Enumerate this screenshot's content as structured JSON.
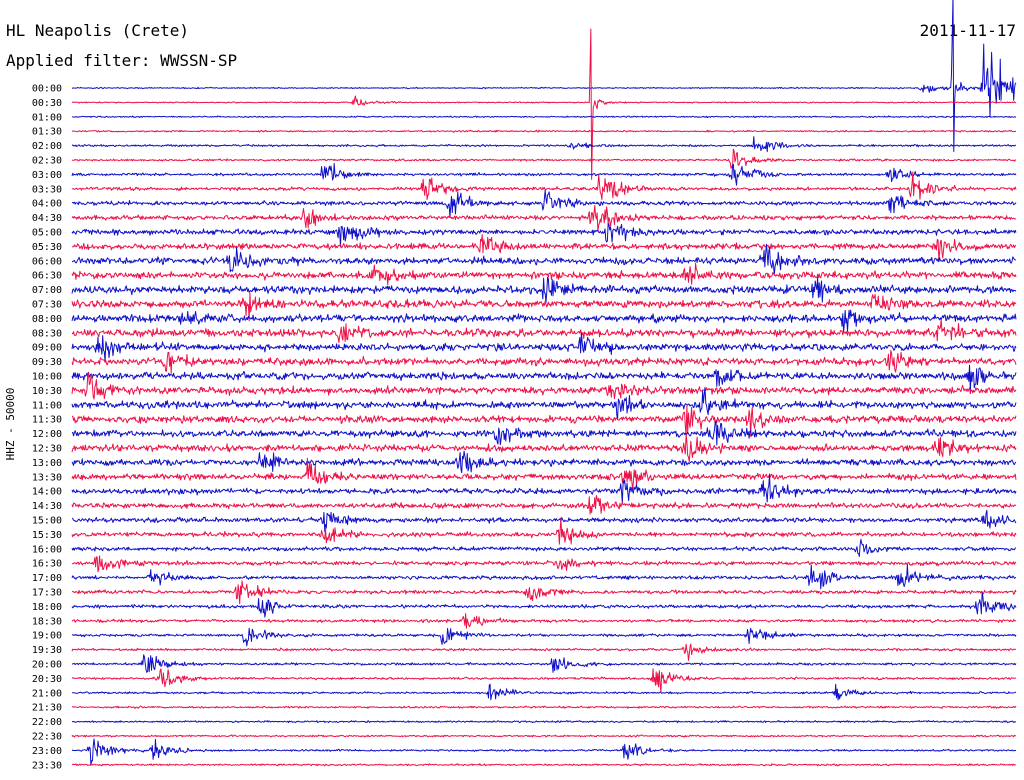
{
  "station": "HL Neapolis (Crete)",
  "date": "2011-11-17",
  "filter_text": "Applied filter: WWSSN-SP",
  "ylabel": "HHZ - 50000",
  "colors": {
    "odd_trace": "#1010c8",
    "even_trace": "#ee1148",
    "text": "#000000",
    "background": "#ffffff"
  },
  "chart_data": {
    "type": "line",
    "subtype": "helicorder",
    "title": "HL Neapolis (Crete)",
    "subtitle": "Applied filter: WWSSN-SP",
    "date": "2011-11-17",
    "ylabel": "HHZ - 50000",
    "xlabel": "",
    "grid": false,
    "legend": "none",
    "minutes_per_row": 30,
    "row_labels": [
      "00:00",
      "00:30",
      "01:00",
      "01:30",
      "02:00",
      "02:30",
      "03:00",
      "03:30",
      "04:00",
      "04:30",
      "05:00",
      "05:30",
      "06:00",
      "06:30",
      "07:00",
      "07:30",
      "08:00",
      "08:30",
      "09:00",
      "09:30",
      "10:00",
      "10:30",
      "11:00",
      "11:30",
      "12:00",
      "12:30",
      "13:00",
      "13:30",
      "14:00",
      "14:30",
      "15:00",
      "15:30",
      "16:00",
      "16:30",
      "17:00",
      "17:30",
      "18:00",
      "18:30",
      "19:00",
      "19:30",
      "20:00",
      "20:30",
      "21:00",
      "21:30",
      "22:00",
      "22:30",
      "23:00",
      "23:30"
    ],
    "row_colors": [
      "blue",
      "red"
    ],
    "noise_level": [
      0.6,
      0.6,
      0.7,
      0.8,
      1.0,
      1.0,
      1.3,
      1.6,
      2.0,
      2.2,
      2.6,
      3.0,
      3.4,
      3.6,
      3.8,
      3.8,
      3.8,
      3.8,
      3.6,
      3.6,
      3.6,
      3.6,
      3.6,
      3.6,
      3.4,
      3.4,
      3.2,
      3.0,
      2.8,
      2.6,
      2.4,
      2.2,
      2.0,
      2.0,
      1.8,
      1.8,
      1.6,
      1.4,
      1.3,
      1.2,
      1.2,
      1.1,
      1.0,
      1.0,
      0.9,
      0.9,
      0.9,
      0.9
    ],
    "events": [
      {
        "row": 0,
        "minute": 28.0,
        "amplitude": 95,
        "kind": "spike"
      },
      {
        "row": 0,
        "minute": 29.0,
        "amplitude": 40,
        "kind": "burst"
      },
      {
        "row": 1,
        "minute": 16.5,
        "amplitude": 90,
        "kind": "spike"
      },
      {
        "row": 0,
        "minute": 27.0,
        "amplitude": 5,
        "kind": "burst"
      },
      {
        "row": 1,
        "minute": 9.0,
        "amplitude": 4,
        "kind": "burst"
      },
      {
        "row": 4,
        "minute": 15.8,
        "amplitude": 5,
        "kind": "burst"
      },
      {
        "row": 4,
        "minute": 21.7,
        "amplitude": 9,
        "kind": "burst"
      },
      {
        "row": 5,
        "minute": 21.0,
        "amplitude": 9,
        "kind": "burst"
      },
      {
        "row": 6,
        "minute": 21.0,
        "amplitude": 12,
        "kind": "burst"
      },
      {
        "row": 6,
        "minute": 8.0,
        "amplitude": 10,
        "kind": "burst"
      },
      {
        "row": 6,
        "minute": 26.0,
        "amplitude": 7,
        "kind": "burst"
      },
      {
        "row": 7,
        "minute": 11.2,
        "amplitude": 14,
        "kind": "burst"
      },
      {
        "row": 7,
        "minute": 16.8,
        "amplitude": 14,
        "kind": "burst"
      },
      {
        "row": 7,
        "minute": 26.7,
        "amplitude": 12,
        "kind": "burst"
      },
      {
        "row": 8,
        "minute": 12.0,
        "amplitude": 12,
        "kind": "burst"
      },
      {
        "row": 8,
        "minute": 15.0,
        "amplitude": 13,
        "kind": "burst"
      },
      {
        "row": 8,
        "minute": 26.0,
        "amplitude": 10,
        "kind": "burst"
      },
      {
        "row": 9,
        "minute": 7.4,
        "amplitude": 10,
        "kind": "burst"
      },
      {
        "row": 9,
        "minute": 16.5,
        "amplitude": 14,
        "kind": "burst"
      },
      {
        "row": 10,
        "minute": 8.5,
        "amplitude": 13,
        "kind": "burst"
      },
      {
        "row": 10,
        "minute": 17.0,
        "amplitude": 12,
        "kind": "burst"
      },
      {
        "row": 11,
        "minute": 13.0,
        "amplitude": 12,
        "kind": "burst"
      },
      {
        "row": 11,
        "minute": 27.5,
        "amplitude": 12,
        "kind": "burst"
      },
      {
        "row": 12,
        "minute": 5.0,
        "amplitude": 12,
        "kind": "burst"
      },
      {
        "row": 12,
        "minute": 22.0,
        "amplitude": 14,
        "kind": "burst"
      },
      {
        "row": 13,
        "minute": 9.5,
        "amplitude": 13,
        "kind": "burst"
      },
      {
        "row": 13,
        "minute": 19.5,
        "amplitude": 13,
        "kind": "burst"
      },
      {
        "row": 14,
        "minute": 15.0,
        "amplitude": 12,
        "kind": "burst"
      },
      {
        "row": 14,
        "minute": 23.5,
        "amplitude": 12,
        "kind": "burst"
      },
      {
        "row": 15,
        "minute": 5.5,
        "amplitude": 12,
        "kind": "burst"
      },
      {
        "row": 15,
        "minute": 25.5,
        "amplitude": 13,
        "kind": "burst"
      },
      {
        "row": 16,
        "minute": 3.5,
        "amplitude": 12,
        "kind": "burst"
      },
      {
        "row": 16,
        "minute": 24.5,
        "amplitude": 12,
        "kind": "burst"
      },
      {
        "row": 17,
        "minute": 8.5,
        "amplitude": 13,
        "kind": "burst"
      },
      {
        "row": 17,
        "minute": 27.5,
        "amplitude": 13,
        "kind": "burst"
      },
      {
        "row": 18,
        "minute": 0.8,
        "amplitude": 14,
        "kind": "burst"
      },
      {
        "row": 18,
        "minute": 16.2,
        "amplitude": 13,
        "kind": "burst"
      },
      {
        "row": 19,
        "minute": 3.0,
        "amplitude": 12,
        "kind": "burst"
      },
      {
        "row": 19,
        "minute": 26.0,
        "amplitude": 12,
        "kind": "burst"
      },
      {
        "row": 20,
        "minute": 20.5,
        "amplitude": 10,
        "kind": "burst"
      },
      {
        "row": 20,
        "minute": 28.5,
        "amplitude": 12,
        "kind": "burst"
      },
      {
        "row": 21,
        "minute": 0.5,
        "amplitude": 12,
        "kind": "burst"
      },
      {
        "row": 21,
        "minute": 17.0,
        "amplitude": 12,
        "kind": "burst"
      },
      {
        "row": 22,
        "minute": 17.3,
        "amplitude": 14,
        "kind": "burst"
      },
      {
        "row": 22,
        "minute": 20.0,
        "amplitude": 12,
        "kind": "burst"
      },
      {
        "row": 23,
        "minute": 19.5,
        "amplitude": 13,
        "kind": "burst"
      },
      {
        "row": 23,
        "minute": 21.5,
        "amplitude": 12,
        "kind": "burst"
      },
      {
        "row": 24,
        "minute": 13.5,
        "amplitude": 13,
        "kind": "burst"
      },
      {
        "row": 24,
        "minute": 20.3,
        "amplitude": 14,
        "kind": "burst"
      },
      {
        "row": 25,
        "minute": 19.5,
        "amplitude": 14,
        "kind": "burst"
      },
      {
        "row": 25,
        "minute": 27.5,
        "amplitude": 12,
        "kind": "burst"
      },
      {
        "row": 26,
        "minute": 6.0,
        "amplitude": 12,
        "kind": "burst"
      },
      {
        "row": 26,
        "minute": 12.3,
        "amplitude": 12,
        "kind": "burst"
      },
      {
        "row": 27,
        "minute": 7.5,
        "amplitude": 12,
        "kind": "burst"
      },
      {
        "row": 27,
        "minute": 17.5,
        "amplitude": 12,
        "kind": "burst"
      },
      {
        "row": 28,
        "minute": 17.5,
        "amplitude": 12,
        "kind": "burst"
      },
      {
        "row": 28,
        "minute": 22.0,
        "amplitude": 14,
        "kind": "burst"
      },
      {
        "row": 29,
        "minute": 16.5,
        "amplitude": 11,
        "kind": "burst"
      },
      {
        "row": 30,
        "minute": 8.0,
        "amplitude": 9,
        "kind": "burst"
      },
      {
        "row": 30,
        "minute": 29.0,
        "amplitude": 9,
        "kind": "burst"
      },
      {
        "row": 31,
        "minute": 15.5,
        "amplitude": 12,
        "kind": "burst"
      },
      {
        "row": 31,
        "minute": 8.0,
        "amplitude": 8,
        "kind": "burst"
      },
      {
        "row": 32,
        "minute": 25.0,
        "amplitude": 8,
        "kind": "burst"
      },
      {
        "row": 33,
        "minute": 0.8,
        "amplitude": 10,
        "kind": "burst"
      },
      {
        "row": 33,
        "minute": 15.5,
        "amplitude": 8,
        "kind": "burst"
      },
      {
        "row": 34,
        "minute": 2.5,
        "amplitude": 8,
        "kind": "burst"
      },
      {
        "row": 34,
        "minute": 23.5,
        "amplitude": 12,
        "kind": "burst"
      },
      {
        "row": 34,
        "minute": 26.3,
        "amplitude": 10,
        "kind": "burst"
      },
      {
        "row": 35,
        "minute": 5.3,
        "amplitude": 9,
        "kind": "burst"
      },
      {
        "row": 35,
        "minute": 14.5,
        "amplitude": 9,
        "kind": "burst"
      },
      {
        "row": 36,
        "minute": 6.0,
        "amplitude": 10,
        "kind": "burst"
      },
      {
        "row": 36,
        "minute": 28.8,
        "amplitude": 12,
        "kind": "burst"
      },
      {
        "row": 37,
        "minute": 12.5,
        "amplitude": 8,
        "kind": "burst"
      },
      {
        "row": 38,
        "minute": 5.5,
        "amplitude": 9,
        "kind": "burst"
      },
      {
        "row": 38,
        "minute": 11.8,
        "amplitude": 9,
        "kind": "burst"
      },
      {
        "row": 38,
        "minute": 21.5,
        "amplitude": 10,
        "kind": "burst"
      },
      {
        "row": 39,
        "minute": 19.5,
        "amplitude": 7,
        "kind": "burst"
      },
      {
        "row": 40,
        "minute": 2.3,
        "amplitude": 10,
        "kind": "burst"
      },
      {
        "row": 40,
        "minute": 15.3,
        "amplitude": 10,
        "kind": "burst"
      },
      {
        "row": 41,
        "minute": 2.8,
        "amplitude": 9,
        "kind": "burst"
      },
      {
        "row": 41,
        "minute": 18.5,
        "amplitude": 11,
        "kind": "burst"
      },
      {
        "row": 42,
        "minute": 13.3,
        "amplitude": 7,
        "kind": "burst"
      },
      {
        "row": 42,
        "minute": 24.3,
        "amplitude": 6,
        "kind": "burst"
      },
      {
        "row": 46,
        "minute": 0.6,
        "amplitude": 10,
        "kind": "burst"
      },
      {
        "row": 46,
        "minute": 2.6,
        "amplitude": 8,
        "kind": "burst"
      },
      {
        "row": 46,
        "minute": 17.6,
        "amplitude": 8,
        "kind": "burst"
      }
    ]
  }
}
